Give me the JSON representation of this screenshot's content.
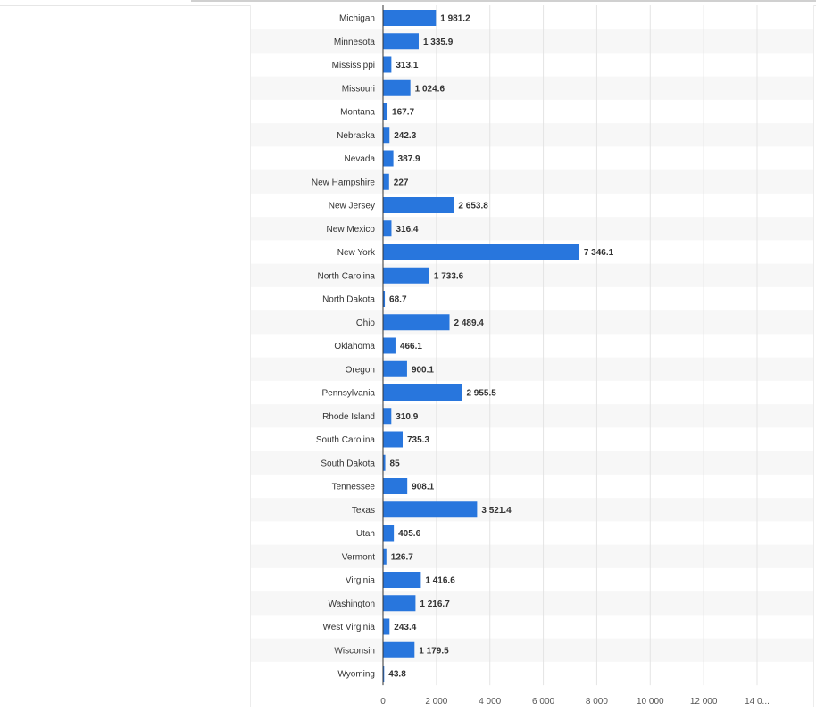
{
  "chart_data": {
    "type": "bar",
    "orientation": "horizontal",
    "categories": [
      "Michigan",
      "Minnesota",
      "Mississippi",
      "Missouri",
      "Montana",
      "Nebraska",
      "Nevada",
      "New Hampshire",
      "New Jersey",
      "New Mexico",
      "New York",
      "North Carolina",
      "North Dakota",
      "Ohio",
      "Oklahoma",
      "Oregon",
      "Pennsylvania",
      "Rhode Island",
      "South Carolina",
      "South Dakota",
      "Tennessee",
      "Texas",
      "Utah",
      "Vermont",
      "Virginia",
      "Washington",
      "West Virginia",
      "Wisconsin",
      "Wyoming"
    ],
    "values": [
      1981.2,
      1335.9,
      313.1,
      1024.6,
      167.7,
      242.3,
      387.9,
      227,
      2653.8,
      316.4,
      7346.1,
      1733.6,
      68.7,
      2489.4,
      466.1,
      900.1,
      2955.5,
      310.9,
      735.3,
      85,
      908.1,
      3521.4,
      405.6,
      126.7,
      1416.6,
      1216.7,
      243.4,
      1179.5,
      43.8
    ],
    "value_labels": [
      "1 981.2",
      "1 335.9",
      "313.1",
      "1 024.6",
      "167.7",
      "242.3",
      "387.9",
      "227",
      "2 653.8",
      "316.4",
      "7 346.1",
      "1 733.6",
      "68.7",
      "2 489.4",
      "466.1",
      "900.1",
      "2 955.5",
      "310.9",
      "735.3",
      "85",
      "908.1",
      "3 521.4",
      "405.6",
      "126.7",
      "1 416.6",
      "1 216.7",
      "243.4",
      "1 179.5",
      "43.8"
    ],
    "x_ticks": [
      "0",
      "2 000",
      "4 000",
      "6 000",
      "8 000",
      "10 000",
      "12 000",
      "14 0..."
    ],
    "xlim": [
      0,
      14000
    ],
    "bar_color": "#2876dd",
    "grid": true,
    "row_stripe_color": "#f7f7f7",
    "title": "",
    "xlabel": "",
    "ylabel": ""
  }
}
